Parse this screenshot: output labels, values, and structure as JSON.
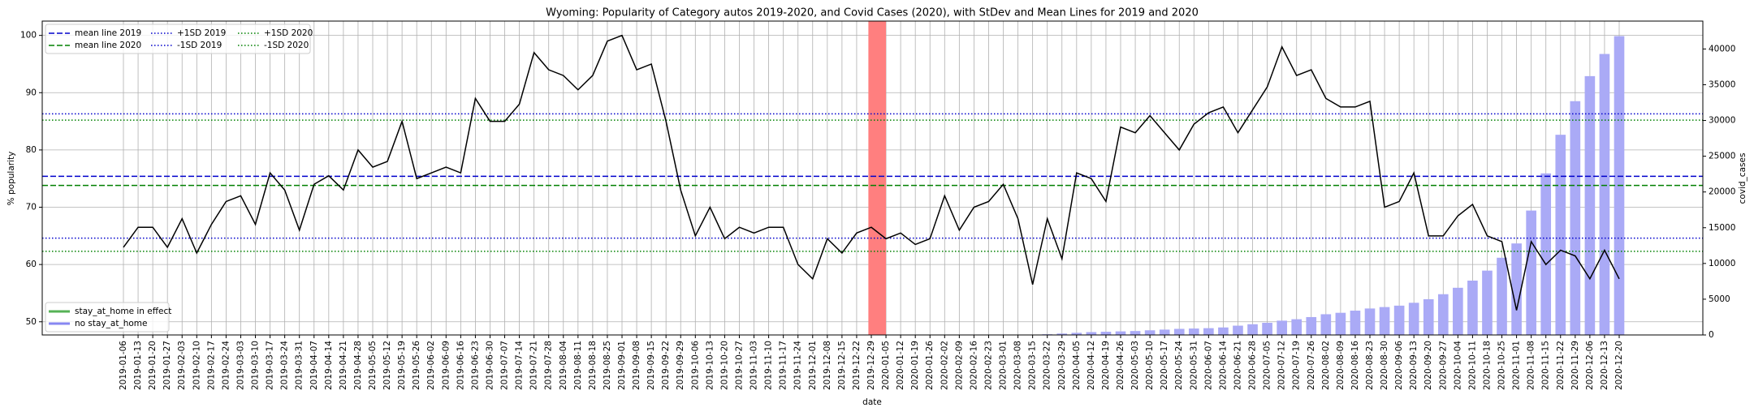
{
  "chart_data": {
    "type": "line",
    "title": "Wyoming: Popularity of Category autos 2019-2020, and Covid Cases (2020), with StDev and Mean Lines for 2019 and 2020",
    "xlabel": "date",
    "ylabel": "% popularity",
    "y2label": "covid_cases",
    "categories": [
      "2019-01-06",
      "2019-01-13",
      "2019-01-20",
      "2019-01-27",
      "2019-02-03",
      "2019-02-10",
      "2019-02-17",
      "2019-02-24",
      "2019-03-03",
      "2019-03-10",
      "2019-03-17",
      "2019-03-24",
      "2019-03-31",
      "2019-04-07",
      "2019-04-14",
      "2019-04-21",
      "2019-04-28",
      "2019-05-05",
      "2019-05-12",
      "2019-05-19",
      "2019-05-26",
      "2019-06-02",
      "2019-06-09",
      "2019-06-16",
      "2019-06-23",
      "2019-06-30",
      "2019-07-07",
      "2019-07-14",
      "2019-07-21",
      "2019-07-28",
      "2019-08-04",
      "2019-08-11",
      "2019-08-18",
      "2019-08-25",
      "2019-09-01",
      "2019-09-08",
      "2019-09-15",
      "2019-09-22",
      "2019-09-29",
      "2019-10-06",
      "2019-10-13",
      "2019-10-20",
      "2019-10-27",
      "2019-11-03",
      "2019-11-10",
      "2019-11-17",
      "2019-11-24",
      "2019-12-01",
      "2019-12-08",
      "2019-12-15",
      "2019-12-22",
      "2019-12-29",
      "2020-01-05",
      "2020-01-12",
      "2020-01-19",
      "2020-01-26",
      "2020-02-02",
      "2020-02-09",
      "2020-02-16",
      "2020-02-23",
      "2020-03-01",
      "2020-03-08",
      "2020-03-15",
      "2020-03-22",
      "2020-03-29",
      "2020-04-05",
      "2020-04-12",
      "2020-04-19",
      "2020-04-26",
      "2020-05-03",
      "2020-05-10",
      "2020-05-17",
      "2020-05-24",
      "2020-05-31",
      "2020-06-07",
      "2020-06-14",
      "2020-06-21",
      "2020-06-28",
      "2020-07-05",
      "2020-07-12",
      "2020-07-19",
      "2020-07-26",
      "2020-08-02",
      "2020-08-09",
      "2020-08-16",
      "2020-08-23",
      "2020-08-30",
      "2020-09-06",
      "2020-09-13",
      "2020-09-20",
      "2020-09-27",
      "2020-10-04",
      "2020-10-11",
      "2020-10-18",
      "2020-10-25",
      "2020-11-01",
      "2020-11-08",
      "2020-11-15",
      "2020-11-22",
      "2020-11-29",
      "2020-12-06",
      "2020-12-13",
      "2020-12-20"
    ],
    "series": [
      {
        "color": "#000000",
        "values": [
          63,
          66.5,
          66.5,
          63,
          68,
          62,
          67,
          71,
          72,
          67,
          76,
          73,
          66,
          74,
          75.5,
          73,
          80,
          77,
          78,
          85,
          75,
          76,
          77,
          76,
          89,
          85,
          85,
          88,
          97,
          94,
          93,
          90.5,
          93,
          99,
          100,
          94,
          95,
          85,
          73,
          65,
          70,
          64.5,
          66.5,
          65.5,
          66.5,
          66.5,
          60,
          57.5,
          64.5,
          62,
          65.5,
          66.5,
          64.5,
          65.5,
          63.5,
          64.5,
          72,
          66,
          70,
          71,
          74,
          68,
          56.5,
          68,
          61,
          76,
          75,
          71,
          84,
          83,
          86,
          83,
          80,
          84.5,
          86.5,
          87.5,
          83,
          87,
          91,
          98,
          93,
          94,
          89,
          87.5,
          87.5,
          88.5,
          70,
          71,
          76,
          65,
          65,
          68.5,
          70.5,
          65,
          64,
          52,
          64,
          60,
          62.5,
          61.5,
          57.5,
          62.5,
          57.5
        ]
      },
      {
        "name": "no stay_at_home",
        "type": "bar",
        "axis": "y2",
        "color": "#aaaaf6",
        "values": [
          null,
          null,
          null,
          null,
          null,
          null,
          null,
          null,
          null,
          null,
          null,
          null,
          null,
          null,
          null,
          null,
          null,
          null,
          null,
          null,
          null,
          null,
          null,
          null,
          null,
          null,
          null,
          null,
          null,
          null,
          null,
          null,
          null,
          null,
          null,
          null,
          null,
          null,
          null,
          null,
          null,
          null,
          null,
          null,
          null,
          null,
          null,
          null,
          null,
          null,
          null,
          null,
          null,
          null,
          null,
          null,
          null,
          null,
          null,
          null,
          null,
          null,
          null,
          100,
          200,
          300,
          400,
          450,
          500,
          550,
          650,
          750,
          850,
          900,
          950,
          1050,
          1300,
          1500,
          1700,
          2000,
          2200,
          2500,
          2900,
          3100,
          3400,
          3700,
          3900,
          4100,
          4500,
          5000,
          5700,
          6600,
          7600,
          9000,
          10800,
          12800,
          17400,
          22600,
          28000,
          32700,
          36200,
          39300,
          41800
        ]
      }
    ],
    "extra_legend": [
      {
        "name": "stay_at_home in effect",
        "color": "#2ca02c"
      }
    ],
    "hlines": [
      {
        "name": "mean line 2019",
        "value": 75.4,
        "color": "#0000cc",
        "style": "dashed"
      },
      {
        "name": "mean line 2020",
        "value": 73.8,
        "color": "#008000",
        "style": "dashed"
      },
      {
        "name": "+1SD 2019",
        "value": 86.3,
        "color": "#0000cc",
        "style": "dotted"
      },
      {
        "name": "-1SD 2019",
        "value": 64.6,
        "color": "#0000cc",
        "style": "dotted"
      },
      {
        "name": "+1SD 2020",
        "value": 85.2,
        "color": "#008000",
        "style": "dotted"
      },
      {
        "name": "-1SD 2020",
        "value": 62.3,
        "color": "#008000",
        "style": "dotted"
      }
    ],
    "highlight": {
      "from": 50.8,
      "to": 52,
      "color": "#ff7f7f"
    },
    "ylim": [
      47.7,
      102.5
    ],
    "yticks": [
      50,
      60,
      70,
      80,
      90,
      100
    ],
    "y2lim": [
      0,
      43900
    ],
    "y2ticks": [
      0,
      5000,
      10000,
      15000,
      20000,
      25000,
      30000,
      35000,
      40000
    ],
    "grid": true
  }
}
